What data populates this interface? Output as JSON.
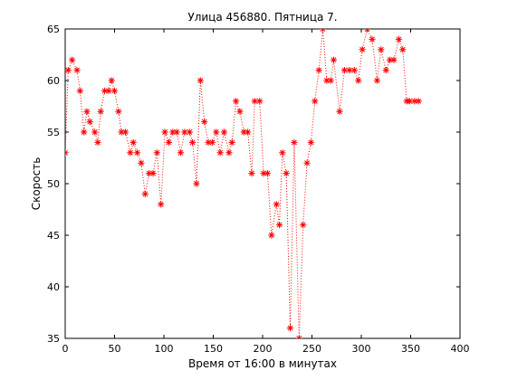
{
  "chart_data": {
    "type": "line",
    "title": "Улица 456880. Пятница 7.",
    "xlabel": "Время от 16:00 в минутах",
    "ylabel": "Скорость",
    "xlim": [
      0,
      400
    ],
    "ylim": [
      35,
      65
    ],
    "xticks": [
      0,
      50,
      100,
      150,
      200,
      250,
      300,
      350,
      400
    ],
    "yticks": [
      35,
      40,
      45,
      50,
      55,
      60,
      65
    ],
    "grid": false,
    "line_style": "dotted",
    "marker": "asterisk",
    "color": "#ff0000",
    "series": [
      {
        "x": [
          0,
          3,
          7,
          12,
          15,
          19,
          22,
          25,
          30,
          33,
          36,
          40,
          44,
          47,
          50,
          54,
          57,
          61,
          66,
          69,
          73,
          77,
          81,
          85,
          89,
          93,
          97,
          101,
          105,
          109,
          113,
          117,
          121,
          126,
          129,
          133,
          137,
          141,
          145,
          149,
          153,
          157,
          161,
          166,
          169,
          173,
          177,
          181,
          185,
          189,
          192,
          197,
          201,
          205,
          209,
          214,
          217,
          220,
          224,
          228,
          232,
          237,
          241,
          245,
          249,
          253,
          257,
          261,
          265,
          269,
          272,
          278,
          283,
          288,
          293,
          297,
          301,
          306,
          311,
          316,
          320,
          325,
          329,
          333,
          338,
          342,
          346,
          349,
          354,
          358
        ],
        "y": [
          53,
          61,
          62,
          61,
          59,
          55,
          57,
          56,
          55,
          54,
          57,
          59,
          59,
          60,
          59,
          57,
          55,
          55,
          53,
          54,
          53,
          52,
          49,
          51,
          51,
          53,
          48,
          55,
          54,
          55,
          55,
          53,
          55,
          55,
          54,
          50,
          60,
          56,
          54,
          54,
          55,
          53,
          55,
          53,
          54,
          58,
          57,
          55,
          55,
          51,
          58,
          58,
          51,
          51,
          45,
          48,
          46,
          53,
          51,
          36,
          54,
          35,
          46,
          52,
          54,
          58,
          61,
          65,
          60,
          60,
          62,
          57,
          61,
          61,
          61,
          60,
          63,
          65,
          64,
          60,
          63,
          61,
          62,
          62,
          64,
          63,
          58,
          58,
          58,
          58
        ]
      }
    ]
  }
}
